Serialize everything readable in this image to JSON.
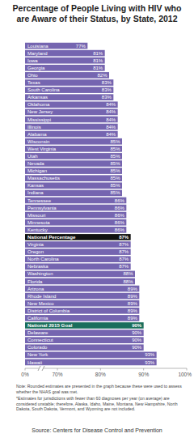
{
  "chart_data": {
    "type": "bar",
    "orientation": "horizontal",
    "title": "Percentage of People Living with HIV who are Aware of their Status, by State, 2012",
    "categories": [
      "Louisiana",
      "Maryland",
      "Iowa",
      "Georgia",
      "Ohio",
      "Texas",
      "South Carolina",
      "Arkansas",
      "Oklahoma",
      "New Jersey",
      "Mississippi",
      "Illinois",
      "Alabama",
      "Wisconsin",
      "West Virginia",
      "Utah",
      "Nevada",
      "Michigan",
      "Massachusetts",
      "Kansas",
      "Indiana",
      "Tennessee",
      "Pennsylvania",
      "Missouri",
      "Minnesota",
      "Kentucky",
      "National Percentage",
      "Virginia",
      "Oregon",
      "North Carolina",
      "Nebraska",
      "Washington",
      "Florida",
      "Arizona",
      "Rhode Island",
      "New Mexico",
      "District of Columbia",
      "California",
      "National 2015 Goal",
      "Delaware",
      "Connecticut",
      "Colorado",
      "New York",
      "Hawaii"
    ],
    "values": [
      77,
      81,
      81,
      81,
      82,
      83,
      83,
      83,
      84,
      84,
      84,
      84,
      84,
      85,
      85,
      85,
      85,
      85,
      85,
      85,
      85,
      86,
      86,
      86,
      86,
      86,
      87,
      87,
      87,
      87,
      87,
      88,
      88,
      89,
      89,
      89,
      89,
      89,
      90,
      90,
      90,
      90,
      93,
      93
    ],
    "value_labels": [
      "77%",
      "81%",
      "81%",
      "81%",
      "82%",
      "83%",
      "83%",
      "83%",
      "84%",
      "84%",
      "84%",
      "84%",
      "84%",
      "85%",
      "85%",
      "85%",
      "85%",
      "85%",
      "85%",
      "85%",
      "85%",
      "86%",
      "86%",
      "86%",
      "86%",
      "86%",
      "87%",
      "87%",
      "87%",
      "87%",
      "87%",
      "88%",
      "88%",
      "89%",
      "89%",
      "89%",
      "89%",
      "89%",
      "90%",
      "90%",
      "90%",
      "90%",
      "93%",
      "93%"
    ],
    "colors": [
      "#7565b0",
      "#7565b0",
      "#7565b0",
      "#7565b0",
      "#7565b0",
      "#7565b0",
      "#7565b0",
      "#7565b0",
      "#7565b0",
      "#7565b0",
      "#7565b0",
      "#7565b0",
      "#7565b0",
      "#7565b0",
      "#7565b0",
      "#7565b0",
      "#7565b0",
      "#7565b0",
      "#7565b0",
      "#7565b0",
      "#7565b0",
      "#7565b0",
      "#7565b0",
      "#7565b0",
      "#7565b0",
      "#7565b0",
      "#111111",
      "#7565b0",
      "#7565b0",
      "#7565b0",
      "#7565b0",
      "#7565b0",
      "#7565b0",
      "#7565b0",
      "#7565b0",
      "#7565b0",
      "#7565b0",
      "#7565b0",
      "#1a6e5c",
      "#7565b0",
      "#7565b0",
      "#7565b0",
      "#7565b0",
      "#7565b0"
    ],
    "data_labels": true,
    "grid": false,
    "xlim": [
      0,
      100
    ],
    "xticks": [
      {
        "value": 0,
        "label": "0%"
      },
      {
        "value": 70,
        "label": "70%"
      },
      {
        "value": 80,
        "label": "80%"
      },
      {
        "value": 90,
        "label": "90%"
      },
      {
        "value": 100,
        "label": "100%"
      }
    ],
    "annotations": [
      "Note: Rounded estimates are presented in the graph because these were used to assess whether the NHAS goal was met.",
      "*Estimates for jurisdictions with fewer than 60 diagnoses per year (on average) are considered unstable; therefore, Alaska, Idaho, Maine, Montana, New Hampshire, North Dakota, South Dakota, Vermont, and Wyoming are not included."
    ],
    "source": "Source: Centers for Disease Control and Prevention"
  }
}
